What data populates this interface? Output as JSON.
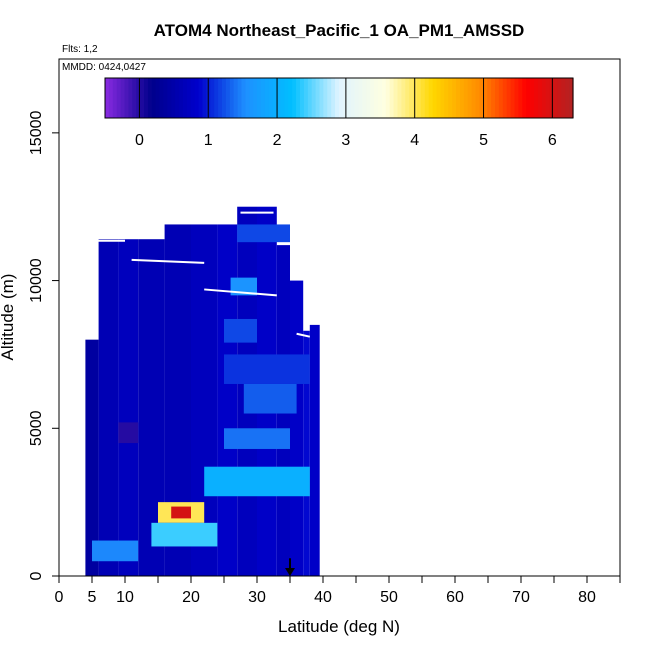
{
  "chart_data": {
    "type": "heatmap",
    "title": "ATOM4 Northeast_Pacific_1 OA_PM1_AMSSD",
    "flights_text": "Flts: 1,2",
    "dates_text": "MMDD: 0424,0427",
    "xlabel": "Latitude (deg N)",
    "ylabel": "Altitude (m)",
    "xlim": [
      0,
      85
    ],
    "ylim": [
      0,
      17500
    ],
    "xticks": [
      0,
      5,
      10,
      20,
      30,
      40,
      50,
      60,
      70,
      80
    ],
    "xtick_labels": [
      "0",
      "5",
      "10",
      "20",
      "30",
      "40",
      "50",
      "60",
      "70",
      "80"
    ],
    "yticks": [
      0,
      5000,
      10000,
      15000
    ],
    "ytick_labels": [
      "0",
      "5000",
      "10000",
      "15000"
    ],
    "colorbar": {
      "min": -0.5,
      "max": 6.3,
      "ticks": [
        0,
        1,
        2,
        3,
        4,
        5,
        6
      ],
      "tick_labels": [
        "0",
        "1",
        "2",
        "3",
        "4",
        "5",
        "6"
      ],
      "colors": [
        "#8a2be2",
        "#00008b",
        "#0000cd",
        "#1e90ff",
        "#00bfff",
        "#e0f4ff",
        "#ffffe0",
        "#ffd700",
        "#ff8c00",
        "#ff0000",
        "#b22222"
      ]
    },
    "columns": [
      {
        "lat": [
          4,
          6
        ],
        "alt": [
          0,
          8000
        ],
        "value": 0.4
      },
      {
        "lat": [
          6,
          9
        ],
        "alt": [
          0,
          11400
        ],
        "value": 0.6
      },
      {
        "lat": [
          9,
          12
        ],
        "alt": [
          0,
          11400
        ],
        "value": 0.7
      },
      {
        "lat": [
          12,
          16
        ],
        "alt": [
          0,
          11400
        ],
        "value": 0.6
      },
      {
        "lat": [
          16,
          20
        ],
        "alt": [
          0,
          11900
        ],
        "value": 0.6
      },
      {
        "lat": [
          20,
          24
        ],
        "alt": [
          0,
          11900
        ],
        "value": 0.7
      },
      {
        "lat": [
          24,
          27
        ],
        "alt": [
          0,
          11900
        ],
        "value": 0.8
      },
      {
        "lat": [
          27,
          30
        ],
        "alt": [
          0,
          12500
        ],
        "value": 0.7
      },
      {
        "lat": [
          30,
          33
        ],
        "alt": [
          0,
          12500
        ],
        "value": 0.8
      },
      {
        "lat": [
          33,
          35
        ],
        "alt": [
          0,
          11200
        ],
        "value": 0.7
      },
      {
        "lat": [
          35,
          37
        ],
        "alt": [
          0,
          10000
        ],
        "value": 0.8
      },
      {
        "lat": [
          37,
          38
        ],
        "alt": [
          0,
          8300
        ],
        "value": 0.9
      },
      {
        "lat": [
          38,
          39.5
        ],
        "alt": [
          0,
          8500
        ],
        "value": 0.8
      }
    ],
    "hotspots": [
      {
        "lat": [
          15,
          22
        ],
        "alt": [
          1800,
          2500
        ],
        "value": 4.0
      },
      {
        "lat": [
          17,
          20
        ],
        "alt": [
          1950,
          2350
        ],
        "value": 6.0
      },
      {
        "lat": [
          14,
          24
        ],
        "alt": [
          1000,
          1800
        ],
        "value": 2.4
      },
      {
        "lat": [
          22,
          38
        ],
        "alt": [
          2700,
          3700
        ],
        "value": 2.0
      },
      {
        "lat": [
          25,
          35
        ],
        "alt": [
          4300,
          5000
        ],
        "value": 1.4
      },
      {
        "lat": [
          9,
          12
        ],
        "alt": [
          4500,
          5200
        ],
        "value": 0.0
      },
      {
        "lat": [
          5,
          12
        ],
        "alt": [
          500,
          1200
        ],
        "value": 1.5
      },
      {
        "lat": [
          28,
          36
        ],
        "alt": [
          5500,
          6500
        ],
        "value": 1.3
      },
      {
        "lat": [
          25,
          38
        ],
        "alt": [
          6500,
          7500
        ],
        "value": 1.1
      },
      {
        "lat": [
          25,
          30
        ],
        "alt": [
          7900,
          8700
        ],
        "value": 1.2
      },
      {
        "lat": [
          26,
          30
        ],
        "alt": [
          9500,
          10100
        ],
        "value": 1.6
      },
      {
        "lat": [
          27,
          35
        ],
        "alt": [
          11300,
          11900
        ],
        "value": 1.2
      }
    ],
    "flight_tracks": [
      {
        "lat": [
          5,
          10
        ],
        "alt": [
          11350,
          11350
        ]
      },
      {
        "lat": [
          11,
          22
        ],
        "alt": [
          10700,
          10600
        ]
      },
      {
        "lat": [
          22,
          33
        ],
        "alt": [
          9700,
          9500
        ]
      },
      {
        "lat": [
          27.5,
          32.5
        ],
        "alt": [
          12300,
          12300
        ]
      },
      {
        "lat": [
          36,
          38
        ],
        "alt": [
          8200,
          8100
        ]
      }
    ],
    "arrow": {
      "lat": 35,
      "alt_top": 600,
      "alt_bottom": 0
    }
  }
}
